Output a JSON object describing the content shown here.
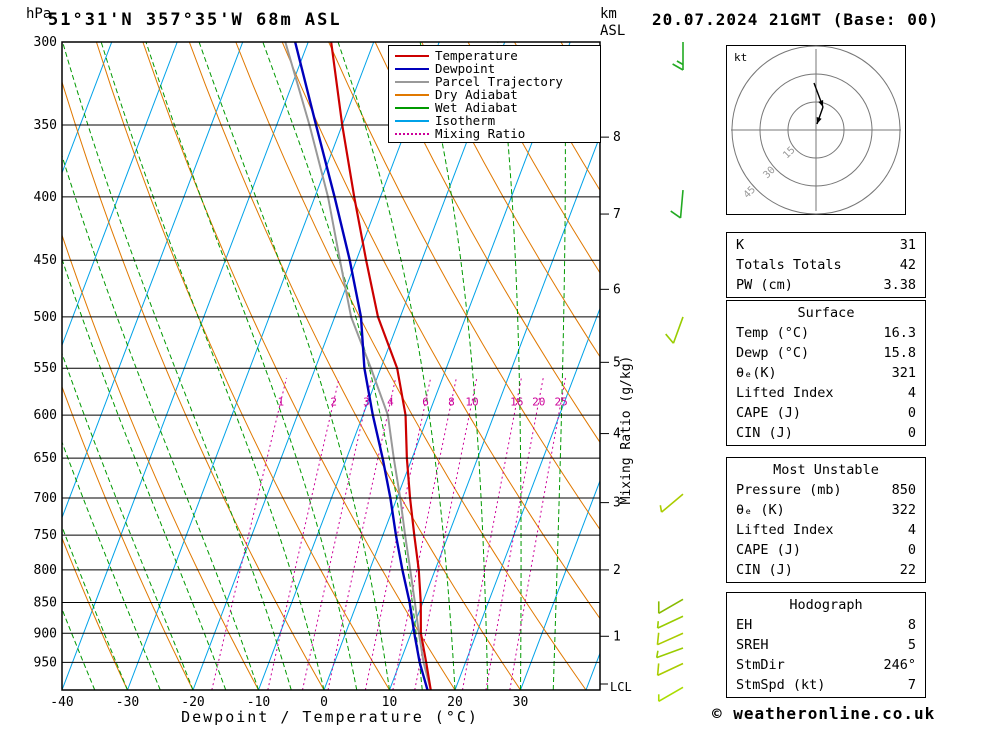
{
  "header": {
    "location": "51°31'N 357°35'W 68m ASL",
    "datetime": "20.07.2024 21GMT (Base: 00)",
    "pressure_unit": "hPa",
    "alt_unit_km": "km",
    "alt_unit_asl": "ASL"
  },
  "axes": {
    "pressure_ticks": [
      300,
      350,
      400,
      450,
      500,
      550,
      600,
      650,
      700,
      750,
      800,
      850,
      900,
      950
    ],
    "km_ticks": [
      {
        "km": 8,
        "p": 358
      },
      {
        "km": 7,
        "p": 413
      },
      {
        "km": 6,
        "p": 475
      },
      {
        "km": 5,
        "p": 544
      },
      {
        "km": 4,
        "p": 621
      },
      {
        "km": 3,
        "p": 706
      },
      {
        "km": 2,
        "p": 800
      },
      {
        "km": 1,
        "p": 905
      }
    ],
    "lcl_label": "LCL",
    "x_ticks": [
      -40,
      -30,
      -20,
      -10,
      0,
      10,
      20,
      30
    ],
    "xlabel": "Dewpoint / Temperature (°C)",
    "mixing_label": "Mixing Ratio (g/kg)",
    "mixing_values": [
      1,
      2,
      3,
      4,
      6,
      8,
      10,
      16,
      20,
      25
    ]
  },
  "colors": {
    "temperature": "#cc0000",
    "dewpoint": "#0000bb",
    "parcel": "#999999",
    "dry_adiabat": "#e07800",
    "wet_adiabat": "#009900",
    "isotherm": "#00a2e8",
    "mixing_ratio": "#cc0099",
    "frame": "#000000"
  },
  "legend": {
    "items": [
      {
        "label": "Temperature",
        "color": "#cc0000",
        "dash": "solid"
      },
      {
        "label": "Dewpoint",
        "color": "#0000bb",
        "dash": "solid"
      },
      {
        "label": "Parcel Trajectory",
        "color": "#999999",
        "dash": "solid"
      },
      {
        "label": "Dry Adiabat",
        "color": "#e07800",
        "dash": "solid"
      },
      {
        "label": "Wet Adiabat",
        "color": "#009900",
        "dash": "solid"
      },
      {
        "label": "Isotherm",
        "color": "#00a2e8",
        "dash": "solid"
      },
      {
        "label": "Mixing Ratio",
        "color": "#cc0099",
        "dash": "dotted"
      }
    ]
  },
  "chart_data": {
    "type": "line",
    "title": "Skew-T log-P sounding",
    "xlabel": "Dewpoint / Temperature (°C)",
    "x_range": [
      -40,
      45
    ],
    "pressure_range": [
      1000,
      300
    ],
    "pressure": [
      1000,
      950,
      900,
      850,
      800,
      750,
      700,
      650,
      600,
      550,
      500,
      450,
      400,
      350,
      300
    ],
    "series": [
      {
        "name": "Temperature",
        "color": "#cc0000",
        "values": [
          16.3,
          14.0,
          11.5,
          9.7,
          7.5,
          4.8,
          2.0,
          -0.8,
          -3.5,
          -7.5,
          -13.4,
          -18.5,
          -24.0,
          -30.0,
          -36.5
        ]
      },
      {
        "name": "Dewpoint",
        "color": "#0000bb",
        "values": [
          15.8,
          13.0,
          10.5,
          8.0,
          5.0,
          2.0,
          -1.0,
          -4.5,
          -8.5,
          -12.5,
          -16.0,
          -21.0,
          -27.0,
          -34.0,
          -42.0
        ]
      },
      {
        "name": "Parcel Trajectory",
        "color": "#999999",
        "values": [
          16.3,
          13.6,
          11.2,
          8.8,
          6.2,
          3.4,
          0.5,
          -2.8,
          -6.2,
          -11.5,
          -17.5,
          -22.5,
          -28.0,
          -35.0,
          -43.5
        ]
      }
    ],
    "wind_barbs": [
      {
        "p": 300,
        "speed": 15,
        "dir": 180,
        "color": "#22aa22"
      },
      {
        "p": 395,
        "speed": 10,
        "dir": 185,
        "color": "#22aa22"
      },
      {
        "p": 500,
        "speed": 10,
        "dir": 200,
        "color": "#99cc00"
      },
      {
        "p": 695,
        "speed": 5,
        "dir": 230,
        "color": "#aacc00"
      },
      {
        "p": 845,
        "speed": 10,
        "dir": 240,
        "color": "#88bb00"
      },
      {
        "p": 872,
        "speed": 5,
        "dir": 245,
        "color": "#99cc00"
      },
      {
        "p": 900,
        "speed": 10,
        "dir": 246,
        "color": "#aacc00"
      },
      {
        "p": 925,
        "speed": 5,
        "dir": 250,
        "color": "#99cc00"
      },
      {
        "p": 952,
        "speed": 10,
        "dir": 245,
        "color": "#aacc00"
      },
      {
        "p": 995,
        "speed": 5,
        "dir": 240,
        "color": "#aadd00"
      }
    ]
  },
  "hodograph": {
    "unit_label": "kt",
    "rings": [
      15,
      30,
      45
    ],
    "arrows": [
      [
        88,
        38,
        97,
        62
      ],
      [
        97,
        62,
        91,
        79
      ]
    ]
  },
  "tables": [
    {
      "name": "indices-table",
      "rows": [
        [
          "K",
          "31"
        ],
        [
          "Totals Totals",
          "42"
        ],
        [
          "PW (cm)",
          "3.38"
        ]
      ]
    },
    {
      "name": "surface-table",
      "title": "Surface",
      "rows": [
        [
          "Temp (°C)",
          "16.3"
        ],
        [
          "Dewp (°C)",
          "15.8"
        ],
        [
          "θₑ(K)",
          "321"
        ],
        [
          "Lifted Index",
          "4"
        ],
        [
          "CAPE (J)",
          "0"
        ],
        [
          "CIN (J)",
          "0"
        ]
      ]
    },
    {
      "name": "most-unstable-table",
      "title": "Most Unstable",
      "rows": [
        [
          "Pressure (mb)",
          "850"
        ],
        [
          "θₑ (K)",
          "322"
        ],
        [
          "Lifted Index",
          "4"
        ],
        [
          "CAPE (J)",
          "0"
        ],
        [
          "CIN (J)",
          "22"
        ]
      ]
    },
    {
      "name": "hodograph-table",
      "title": "Hodograph",
      "rows": [
        [
          "EH",
          "8"
        ],
        [
          "SREH",
          "5"
        ],
        [
          "StmDir",
          "246°"
        ],
        [
          "StmSpd (kt)",
          "7"
        ]
      ]
    }
  ],
  "footer": {
    "copyright": "© weatheronline.co.uk"
  }
}
